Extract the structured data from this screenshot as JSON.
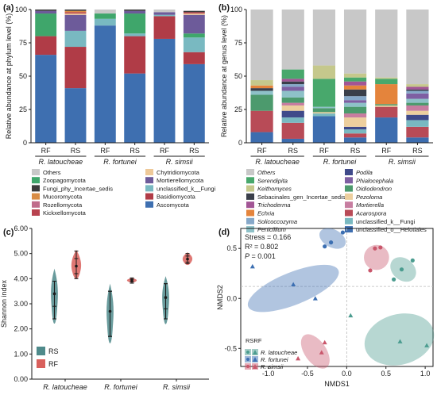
{
  "colors": {
    "Others": "#c8c8c8",
    "Zoopagomycota": "#3fa66b",
    "Fungi_phy_Incertae_sedis": "#3b3b3b",
    "Mucoromycota": "#d98c45",
    "Rozellomycota": "#c06b8b",
    "Kickxellomycota": "#b8434f",
    "Chytridiomycota": "#eec999",
    "Mortierellomycota": "#6d5b9a",
    "unclassified_k__Fungi": "#79b9c1",
    "Basidiomycota": "#b03c47",
    "Ascomycota": "#3e6fb0",
    "Keithomyces": "#c5c88c",
    "Trichoderma": "#a25595",
    "Solicoccozyma": "#86a8c9",
    "Phialocephala": "#7e5fa2",
    "Mortierella": "#c77da0",
    "Serendipita": "#48a86c",
    "Sebacinales_gen_Incertae_sedis": "#3a3f4a",
    "Echria": "#e4843c",
    "Penicillium": "#8ec1c8",
    "Pezoloma": "#edcf9e",
    "Podila": "#3f4a8a",
    "Oidiodendron": "#4c9a6d",
    "Acarospora": "#b84b57",
    "unclassified_o__Helotiales": "#3d6daf",
    "RS": "#4f8a8b",
    "RF": "#d9605c",
    "latoucheae": "#4b9c8f",
    "fortunei": "#3c6fb2",
    "simsii": "#c9566b"
  },
  "panels": {
    "a": "(a)",
    "b": "(b)",
    "c": "(c)",
    "d": "(d)"
  },
  "chart_data": [
    {
      "id": "a",
      "type": "bar",
      "stacked": true,
      "categories": [
        "RF",
        "RS",
        "RF",
        "RS",
        "RF",
        "RS"
      ],
      "groups": [
        "R. latoucheae",
        "R. fortunei",
        "R. simsii"
      ],
      "ylabel": "Relative abundance at phylum level (%)",
      "ylim": [
        0,
        100
      ],
      "yticks": [
        0,
        25,
        50,
        75,
        100
      ],
      "legend_order": [
        "Others",
        "Zoopagomycota",
        "Fungi_phy_Incertae_sedis",
        "Mucoromycota",
        "Rozellomycota",
        "Kickxellomycota",
        "Chytridiomycota",
        "Mortierellomycota",
        "unclassified_k__Fungi",
        "Basidiomycota",
        "Ascomycota"
      ],
      "series": [
        {
          "name": "Ascomycota",
          "values": [
            66,
            41,
            88,
            52,
            78,
            59
          ]
        },
        {
          "name": "Basidiomycota",
          "values": [
            14,
            31,
            0,
            28,
            17,
            9
          ]
        },
        {
          "name": "unclassified_k__Fungi",
          "values": [
            0,
            12,
            5,
            2,
            1,
            11
          ]
        },
        {
          "name": "Zoopagomycota",
          "values": [
            17,
            0,
            4,
            15,
            0,
            3
          ]
        },
        {
          "name": "Mortierellomycota",
          "values": [
            2,
            12,
            0,
            2,
            2,
            14
          ]
        },
        {
          "name": "Chytridiomycota",
          "values": [
            0,
            1,
            0,
            0,
            0,
            1
          ]
        },
        {
          "name": "Kickxellomycota",
          "values": [
            0,
            1,
            0,
            0,
            0,
            1
          ]
        },
        {
          "name": "Rozellomycota",
          "values": [
            0,
            0,
            0,
            0,
            0,
            0
          ]
        },
        {
          "name": "Mucoromycota",
          "values": [
            0,
            1,
            0,
            0,
            0,
            0
          ]
        },
        {
          "name": "Fungi_phy_Incertae_sedis",
          "values": [
            1,
            1,
            0,
            1,
            0,
            1
          ]
        },
        {
          "name": "Others",
          "values": [
            0,
            0,
            3,
            0,
            2,
            0
          ]
        }
      ]
    },
    {
      "id": "b",
      "type": "bar",
      "stacked": true,
      "categories": [
        "RF",
        "RS",
        "RF",
        "RS",
        "RF",
        "RS"
      ],
      "groups": [
        "R. latoucheae",
        "R. fortunei",
        "R. simsii"
      ],
      "ylabel": "Relative abundance at genus level (%)",
      "ylim": [
        0,
        100
      ],
      "yticks": [
        0,
        25,
        50,
        75,
        100
      ],
      "legend_order": [
        "Others",
        "Serendipita",
        "Keithomyces",
        "Sebacinales_gen_Incertae_sedis",
        "Trichoderma",
        "Echria",
        "Solicoccozyma",
        "Penicillium",
        "Podila",
        "Phialocephala",
        "Oidiodendron",
        "Pezoloma",
        "Mortierella",
        "Acarospora",
        "unclassified_k__Fungi",
        "unclassified_o__Helotiales"
      ],
      "series": [
        {
          "name": "unclassified_o__Helotiales",
          "values": [
            8,
            3,
            20,
            4,
            19,
            4
          ]
        },
        {
          "name": "Acarospora",
          "values": [
            16,
            12,
            0,
            3,
            8,
            8
          ]
        },
        {
          "name": "unclassified_k__Fungi",
          "values": [
            0,
            4,
            2,
            3,
            0,
            5
          ]
        },
        {
          "name": "Podila",
          "values": [
            0,
            5,
            0,
            2,
            0,
            4
          ]
        },
        {
          "name": "Pezoloma",
          "values": [
            0,
            4,
            1,
            7,
            1,
            3
          ]
        },
        {
          "name": "Mortierella",
          "values": [
            0,
            2,
            0,
            3,
            0,
            4
          ]
        },
        {
          "name": "Oidiodendron",
          "values": [
            12,
            4,
            3,
            5,
            1,
            2
          ]
        },
        {
          "name": "Penicillium",
          "values": [
            3,
            5,
            1,
            3,
            0,
            3
          ]
        },
        {
          "name": "Phialocephala",
          "values": [
            0,
            3,
            0,
            2,
            0,
            4
          ]
        },
        {
          "name": "Solicoccozyma",
          "values": [
            0,
            2,
            0,
            3,
            0,
            2
          ]
        },
        {
          "name": "Sebacinales_gen_Incertae_sedis",
          "values": [
            2,
            2,
            0,
            5,
            0,
            1
          ]
        },
        {
          "name": "Echria",
          "values": [
            2,
            0,
            0,
            3,
            15,
            0
          ]
        },
        {
          "name": "Trichoderma",
          "values": [
            0,
            2,
            0,
            3,
            0,
            2
          ]
        },
        {
          "name": "Serendipita",
          "values": [
            0,
            7,
            21,
            3,
            4,
            0
          ]
        },
        {
          "name": "Keithomyces",
          "values": [
            4,
            0,
            10,
            3,
            1,
            2
          ]
        },
        {
          "name": "Others",
          "values": [
            53,
            45,
            42,
            48,
            51,
            56
          ]
        }
      ]
    },
    {
      "id": "c",
      "type": "violin",
      "categories": [
        "R. latoucheae",
        "R. fortunei",
        "R. simsii"
      ],
      "ylabel": "Shannon index",
      "ylim": [
        0,
        6
      ],
      "yticks": [
        "0.00",
        "1.00",
        "2.00",
        "3.00",
        "4.00",
        "5.00",
        "6.00"
      ],
      "legend": [
        {
          "name": "RS",
          "key": "RS"
        },
        {
          "name": "RF",
          "key": "RF"
        }
      ],
      "series": [
        {
          "name": "RS",
          "median": [
            3.4,
            2.7,
            3.25
          ],
          "q1": [
            2.9,
            1.7,
            2.8
          ],
          "q3": [
            3.9,
            3.5,
            3.8
          ],
          "min": [
            2.4,
            1.7,
            2.4
          ],
          "max": [
            3.9,
            3.5,
            3.8
          ],
          "vmin": [
            2.0,
            1.2,
            2.0
          ],
          "vmax": [
            4.4,
            3.8,
            4.1
          ]
        },
        {
          "name": "RF",
          "median": [
            4.5,
            3.93,
            4.78
          ],
          "q1": [
            4.2,
            3.87,
            4.66
          ],
          "q3": [
            4.8,
            3.98,
            4.9
          ],
          "min": [
            4.0,
            3.82,
            4.6
          ],
          "max": [
            5.1,
            4.03,
            5.0
          ],
          "vmin": [
            3.9,
            3.83,
            4.5
          ],
          "vmax": [
            5.15,
            4.03,
            5.05
          ]
        }
      ]
    },
    {
      "id": "d",
      "type": "scatter",
      "xlabel": "NMDS1",
      "ylabel": "NMDS2",
      "xlim": [
        -1.35,
        1.1
      ],
      "ylim": [
        -0.68,
        0.7
      ],
      "xticks": [
        "-1.0",
        "-0.5",
        "0.0",
        "0.5",
        "1.0"
      ],
      "yticks": [
        "-0.5",
        "0.0",
        "0.5"
      ],
      "stats": {
        "stress": "Stress = 0.166",
        "r2": "R² = 0.802",
        "p_label": "P",
        "p_value": " = 0.001"
      },
      "legend_header": "RSRF",
      "legend": [
        {
          "name": "R. latoucheae",
          "key": "latoucheae"
        },
        {
          "name": "R. fortunei",
          "key": "fortunei"
        },
        {
          "name": "R. simsii",
          "key": "simsii"
        }
      ],
      "ellipses": [
        {
          "group": "fortunei",
          "cx": -0.68,
          "cy": 0.1,
          "rx": 0.62,
          "ry": 0.09,
          "angle": -22
        },
        {
          "group": "fortunei",
          "cx": -0.18,
          "cy": 0.6,
          "rx": 0.18,
          "ry": 0.05,
          "angle": 28
        },
        {
          "group": "simsii",
          "cx": 0.38,
          "cy": 0.41,
          "rx": 0.16,
          "ry": 0.07,
          "angle": 55
        },
        {
          "group": "simsii",
          "cx": -0.4,
          "cy": -0.53,
          "rx": 0.25,
          "ry": 0.06,
          "angle": 55
        },
        {
          "group": "latoucheae",
          "cx": 0.72,
          "cy": 0.29,
          "rx": 0.18,
          "ry": 0.06,
          "angle": 40
        },
        {
          "group": "latoucheae",
          "cx": 0.67,
          "cy": -0.41,
          "rx": 0.45,
          "ry": 0.14,
          "angle": -15
        }
      ],
      "points": [
        {
          "group": "fortunei",
          "shape": "triangle",
          "x": [
            -1.2,
            -0.68,
            -0.4
          ],
          "y": [
            0.32,
            0.14,
            0.0
          ]
        },
        {
          "group": "fortunei",
          "shape": "circle",
          "x": [
            -0.28,
            -0.2,
            -0.05
          ],
          "y": [
            0.52,
            0.56,
            0.66
          ]
        },
        {
          "group": "simsii",
          "shape": "circle",
          "x": [
            0.3,
            0.36,
            0.43
          ],
          "y": [
            0.28,
            0.5,
            0.51
          ]
        },
        {
          "group": "simsii",
          "shape": "triangle",
          "x": [
            -0.62,
            -0.32,
            -0.28
          ],
          "y": [
            -0.6,
            -0.54,
            -0.44
          ]
        },
        {
          "group": "latoucheae",
          "shape": "circle",
          "x": [
            0.6,
            0.7,
            0.84
          ],
          "y": [
            0.19,
            0.29,
            0.38
          ]
        },
        {
          "group": "latoucheae",
          "shape": "triangle",
          "x": [
            0.05,
            0.68,
            1.02
          ],
          "y": [
            -0.17,
            -0.43,
            -0.47
          ]
        }
      ]
    }
  ]
}
